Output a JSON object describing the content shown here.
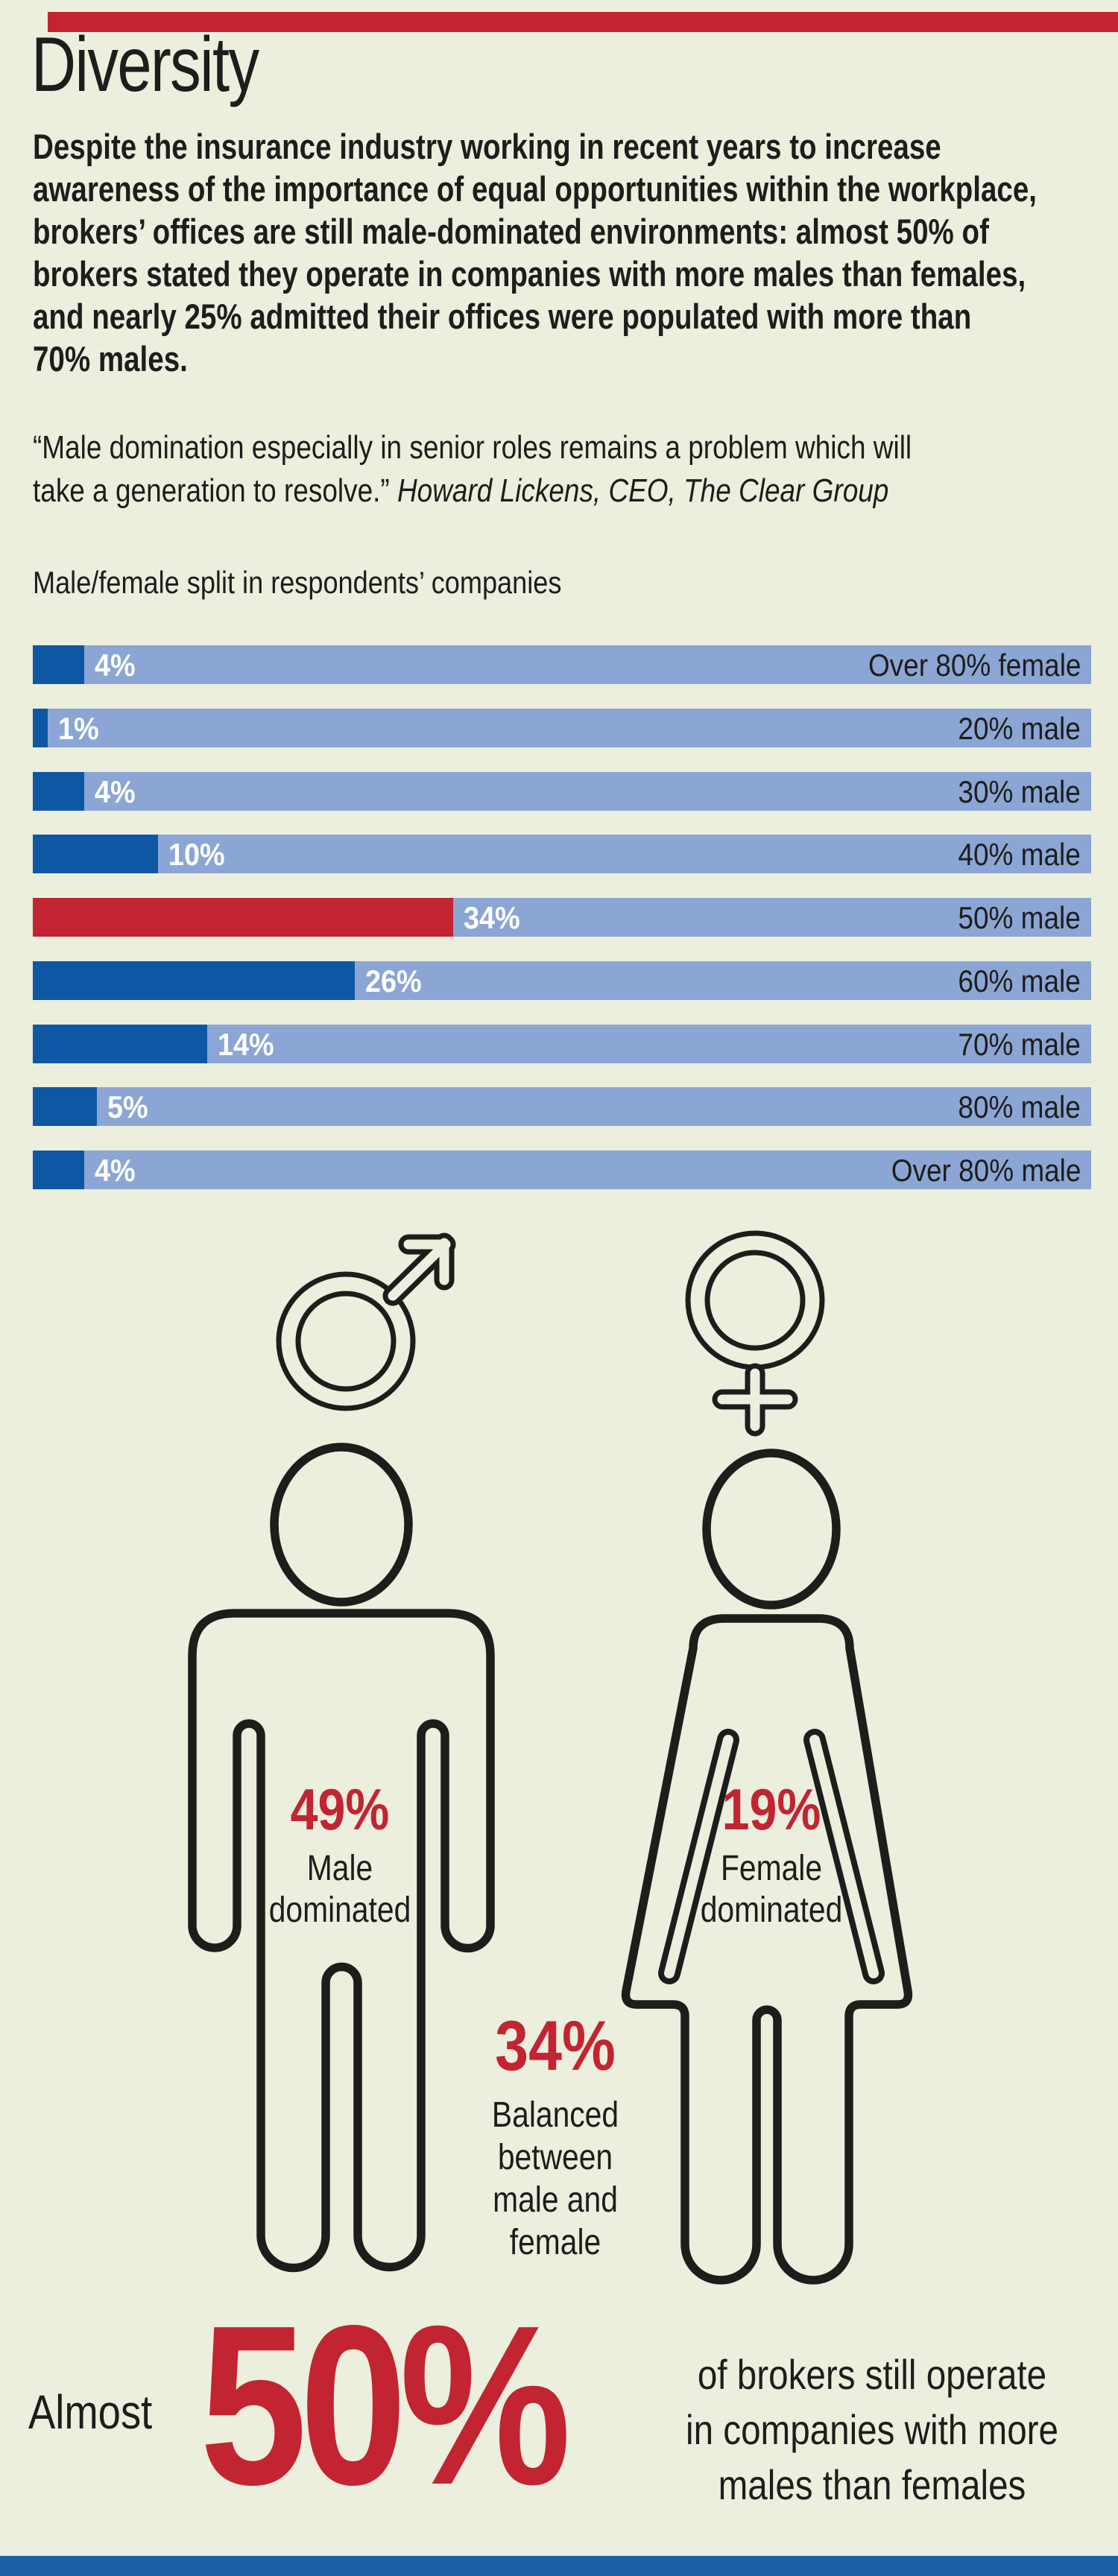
{
  "colors": {
    "background": "#eceede",
    "ink": "#1d1d1b",
    "red": "#c22431",
    "bar_blue": "#0e57a5",
    "bar_track": "#8ba6d4",
    "top_bar_red": "#c22431",
    "bottom_bar_blue": "#1a61a8"
  },
  "header": {
    "title": "Diversity",
    "intro": "Despite the insurance industry working in recent years to increase\nawareness of the importance of equal opportunities within the workplace,\nbrokers’ offices are still male-dominated environments: almost 50% of\nbrokers stated they operate in companies with more males than females,\nand nearly 25% admitted their offices were populated with more than\n70% males.",
    "quote": "“Male domination especially in senior roles remains a problem which will\ntake a generation to resolve.” ",
    "quote_attribution": "Howard Lickens, CEO, The Clear Group"
  },
  "chart_data": {
    "type": "bar",
    "orientation": "horizontal",
    "title": "Male/female split in respondents’ companies",
    "categories": [
      "Over 80% female",
      "20% male",
      "30% male",
      "40% male",
      "50% male",
      "60% male",
      "70% male",
      "80% male",
      "Over 80% male"
    ],
    "values": [
      4,
      1,
      4,
      10,
      34,
      26,
      14,
      5,
      4
    ],
    "value_labels": [
      "4%",
      "1%",
      "4%",
      "10%",
      "34%",
      "26%",
      "14%",
      "5%",
      "4%"
    ],
    "highlight_index": 4,
    "xlim": [
      0,
      100
    ],
    "grid": false,
    "legend": false,
    "bar_color": "#0e57a5",
    "highlight_color": "#c22431",
    "track_color": "#8ba6d4",
    "value_label_color": "#ffffff",
    "category_label_color": "#1d1d1b"
  },
  "figures": {
    "male": {
      "pct": "49%",
      "label": "Male\ndominated"
    },
    "female": {
      "pct": "19%",
      "label": "Female\ndominated"
    },
    "balanced": {
      "pct": "34%",
      "label": "Balanced\nbetween\nmale and\nfemale"
    }
  },
  "footer": {
    "prefix": "Almost",
    "big_pct": "50%",
    "statement": "of brokers still operate\nin companies with more\nmales than females"
  }
}
